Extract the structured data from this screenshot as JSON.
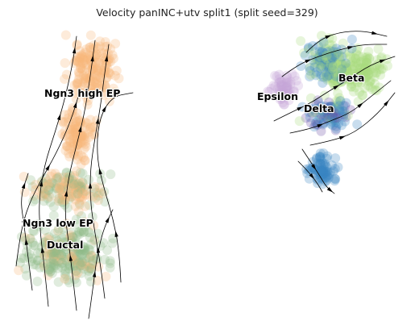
{
  "chart_data": {
    "type": "scatter",
    "title": "Velocity panINC+utv split1 (split seed=329)",
    "xlabel": "",
    "ylabel": "",
    "grid": false,
    "axes_visible": false,
    "overlay": "velocity streamlines with arrowheads",
    "clusters": [
      {
        "name": "Ngn3 high EP",
        "color": "#f9b679"
      },
      {
        "name": "Ngn3 low EP",
        "color": "#8fba87"
      },
      {
        "name": "Ductal",
        "color": "#8fba87"
      },
      {
        "name": "Epsilon",
        "color": "#c7a7d6"
      },
      {
        "name": "Beta",
        "color": "#a9dc7f"
      },
      {
        "name": "Delta",
        "color": "#3a86c2"
      },
      {
        "name": "",
        "color": "#6b4ea6"
      }
    ]
  }
}
